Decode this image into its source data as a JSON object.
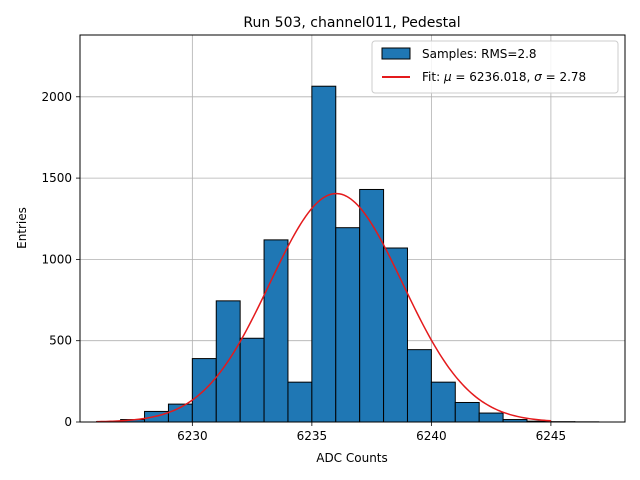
{
  "chart_data": {
    "type": "bar",
    "title": "Run 503, channel011, Pedestal",
    "xlabel": "ADC Counts",
    "ylabel": "Entries",
    "xlim": [
      6225.3,
      6248.1
    ],
    "ylim": [
      0,
      2380
    ],
    "grid": true,
    "legend_placement": "top-right",
    "xticks": [
      6230,
      6235,
      6240,
      6245
    ],
    "xtick_labels": [
      "6230",
      "6235",
      "6240",
      "6245"
    ],
    "yticks": [
      0,
      500,
      1000,
      1500,
      2000
    ],
    "ytick_labels": [
      "0",
      "500",
      "1000",
      "1500",
      "2000"
    ],
    "histogram": {
      "name": "Samples: RMS=2.8",
      "color": "#1f77b4",
      "edge_color": "#000000",
      "bin_edges": [
        6226,
        6227,
        6228,
        6229,
        6230,
        6231,
        6232,
        6233,
        6234,
        6235,
        6236,
        6237,
        6238,
        6239,
        6240,
        6241,
        6242,
        6243,
        6244,
        6245,
        6246,
        6247
      ],
      "counts": [
        3,
        15,
        65,
        110,
        390,
        745,
        515,
        1120,
        245,
        2065,
        1195,
        1430,
        1070,
        445,
        245,
        120,
        55,
        15,
        5,
        2,
        1
      ]
    },
    "fit": {
      "name": "Fit: μ = 6236.018, σ = 2.78",
      "name_prefix": "Fit: ",
      "mu_symbol": "μ",
      "mu_text": " = 6236.018, ",
      "sigma_symbol": "σ",
      "sigma_text": " = 2.78",
      "color": "#e41a1c",
      "mu": 6236.018,
      "sigma": 2.78,
      "amplitude": 1405,
      "x_range": [
        6226,
        6245
      ]
    }
  }
}
